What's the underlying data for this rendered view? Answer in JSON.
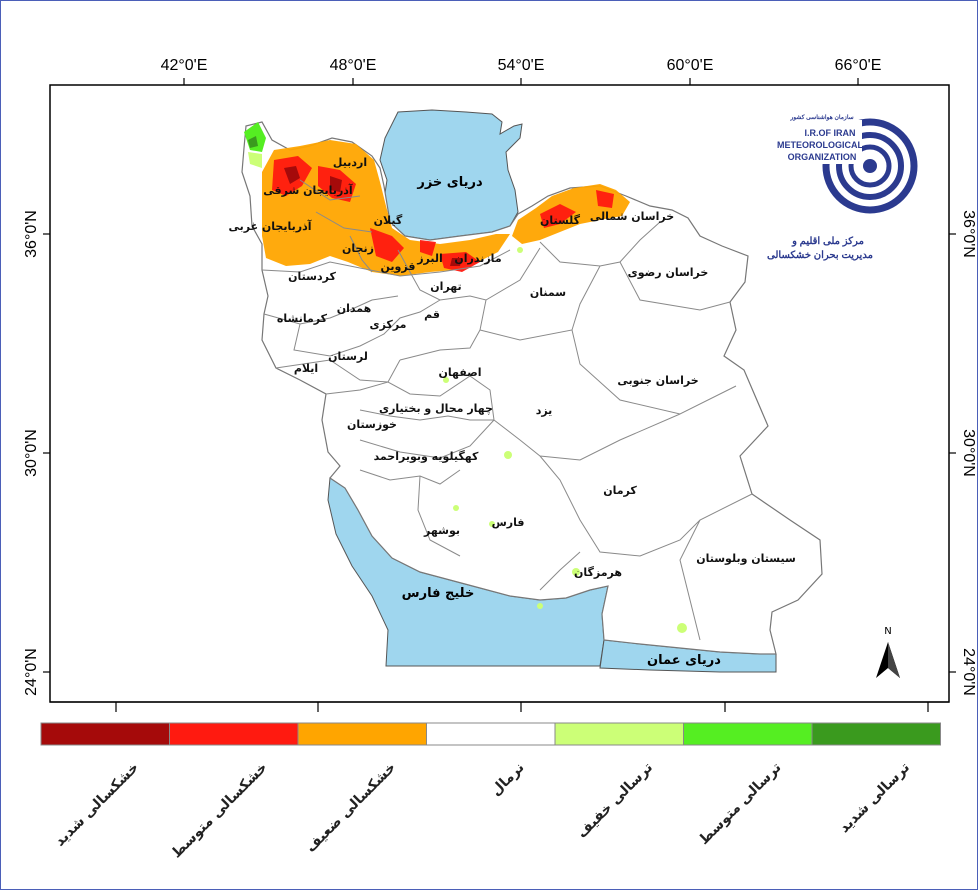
{
  "map": {
    "lon_labels": [
      "42°0'E",
      "48°0'E",
      "54°0'E",
      "60°0'E",
      "66°0'E"
    ],
    "lat_labels": [
      "36°0'N",
      "30°0'N",
      "24°0'N"
    ],
    "seas": {
      "caspian": "دریای خزر",
      "persian_gulf": "خلیج فارس",
      "oman": "دریای عمان"
    },
    "provinces": [
      "اردبیل",
      "آذربایجان شرقی",
      "آذربایجان غربی",
      "گیلان",
      "زنجان",
      "قزوین",
      "البرز",
      "مازندران",
      "گلستان",
      "خراسان شمالی",
      "خراسان رضوی",
      "سمنان",
      "تهران",
      "کردستان",
      "همدان",
      "کرمانشاه",
      "قم",
      "مرکزی",
      "لرستان",
      "ایلام",
      "اصفهان",
      "خراسان جنوبی",
      "چهار محال و بختیاری",
      "یزد",
      "خوزستان",
      "کهگیلویه وبویراحمد",
      "کرمان",
      "فارس",
      "بوشهر",
      "سیستان وبلوستان",
      "هرمزگان"
    ],
    "north_arrow": "N"
  },
  "logo": {
    "persian_org": "سازمان هواشناسی کشور",
    "line1": "I.R.OF IRAN",
    "line2": "METEOROLOGICAL",
    "line3": "ORGANIZATION",
    "center_line1": "مرکز ملی اقلیم و",
    "center_line2": "مدیریت بحران خشکسالی"
  },
  "legend": {
    "classes": [
      {
        "label": "خشکسالی شدید",
        "color": "#a50a0a"
      },
      {
        "label": "خشکسالی متوسط",
        "color": "#ff1a10"
      },
      {
        "label": "خشکسالی ضعیف",
        "color": "#ffa500"
      },
      {
        "label": "نرمال",
        "color": "#ffffff"
      },
      {
        "label": "ترسالی خفیف",
        "color": "#ccff77"
      },
      {
        "label": "ترسالی متوسط",
        "color": "#55ee22"
      },
      {
        "label": "ترسالی شدید",
        "color": "#3a9a1e"
      }
    ]
  },
  "colors": {
    "sea": "#9fd6ee",
    "land": "#ffffff",
    "border": "#8a8a8a",
    "frame": "#4b5fb8"
  }
}
